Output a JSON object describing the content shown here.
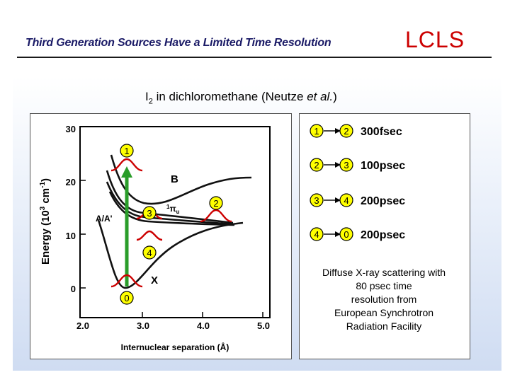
{
  "header": {
    "title": "Third Generation Sources Have a Limited Time Resolution",
    "logo": "LCLS"
  },
  "subtitle": {
    "prefix": "I",
    "subscript": "2",
    "middle": " in dichloromethane (Neutze ",
    "etal": "et al.",
    "suffix": ")"
  },
  "diagram": {
    "y_axis": {
      "label": "Energy (10",
      "sup": "3",
      "unit": " cm",
      "unit_sup": "-1",
      "close": ")",
      "ticks": [
        "30",
        "20",
        "10",
        "0"
      ]
    },
    "x_axis": {
      "label": "Internuclear separation (Å)",
      "ticks": [
        "2.0",
        "3.0",
        "4.0",
        "5.0"
      ]
    },
    "state_labels": {
      "B": "B",
      "X": "X",
      "AA": "A/A'",
      "pi_main": "1",
      "pi_greek": "π",
      "pi_sub": "u"
    },
    "markers": [
      "1",
      "3",
      "2",
      "4",
      "0"
    ]
  },
  "transitions": [
    {
      "from": "1",
      "to": "2",
      "time": "300fsec"
    },
    {
      "from": "2",
      "to": "3",
      "time": "100psec"
    },
    {
      "from": "3",
      "to": "4",
      "time": "200psec"
    },
    {
      "from": "4",
      "to": "0",
      "time": "200psec"
    }
  ],
  "caption": [
    "Diffuse X-ray scattering with",
    "80 psec time",
    "resolution from",
    "European Synchrotron",
    "Radiation Facility"
  ],
  "colors": {
    "title": "#1a1a66",
    "logo": "#cc0000",
    "wavepacket": "#cc0000",
    "marker": "#ffff00",
    "excitation_arrow": "#2a9d2a"
  }
}
